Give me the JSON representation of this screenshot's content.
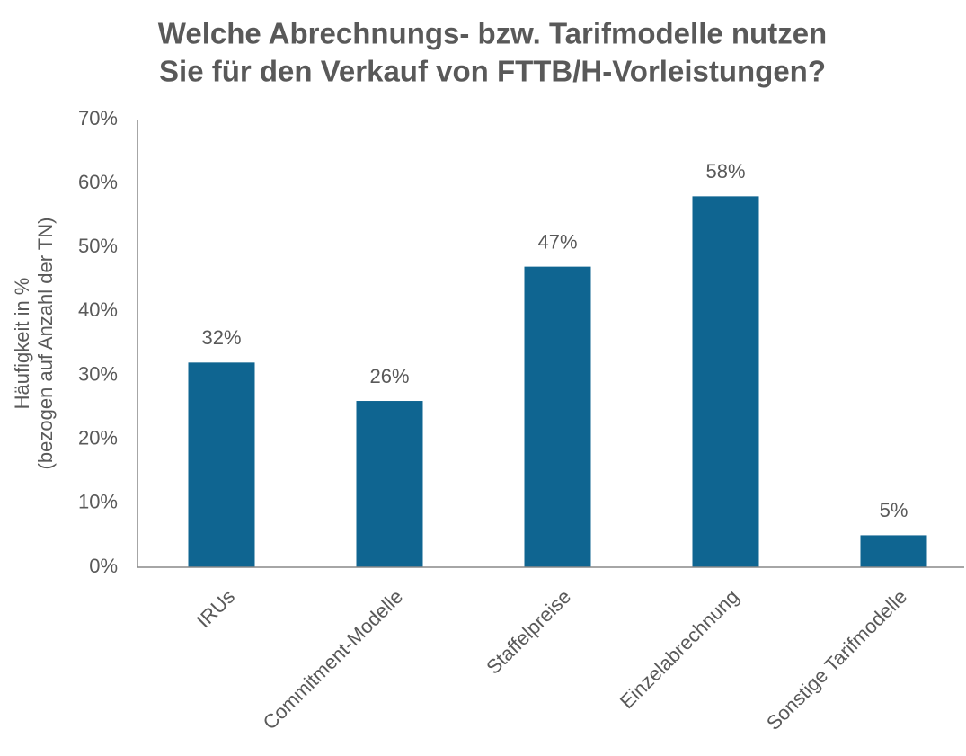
{
  "chart_data": {
    "type": "bar",
    "title": [
      "Welche Abrechnungs- bzw. Tarifmodelle nutzen",
      "Sie für den Verkauf von FTTB/H-Vorleistungen?"
    ],
    "y_label": [
      "Häufigkeit in %",
      "(bezogen auf Anzahl der TN)"
    ],
    "categories": [
      "IRUs",
      "Commitment-Modelle",
      "Staffelpreise",
      "Einzelabrechnung",
      "Sonstige Tarifmodelle"
    ],
    "values": [
      32,
      26,
      47,
      58,
      5
    ],
    "value_labels": [
      "32%",
      "26%",
      "47%",
      "58%",
      "5%"
    ],
    "color": "#0f6591",
    "ylim": [
      0,
      70
    ],
    "yticks": [
      {
        "value": 0,
        "label": "0%"
      },
      {
        "value": 10,
        "label": "10%"
      },
      {
        "value": 20,
        "label": "20%"
      },
      {
        "value": 30,
        "label": "30%"
      },
      {
        "value": 40,
        "label": "40%"
      },
      {
        "value": 50,
        "label": "50%"
      },
      {
        "value": 60,
        "label": "60%"
      },
      {
        "value": 70,
        "label": "70%"
      }
    ],
    "grid": false
  }
}
